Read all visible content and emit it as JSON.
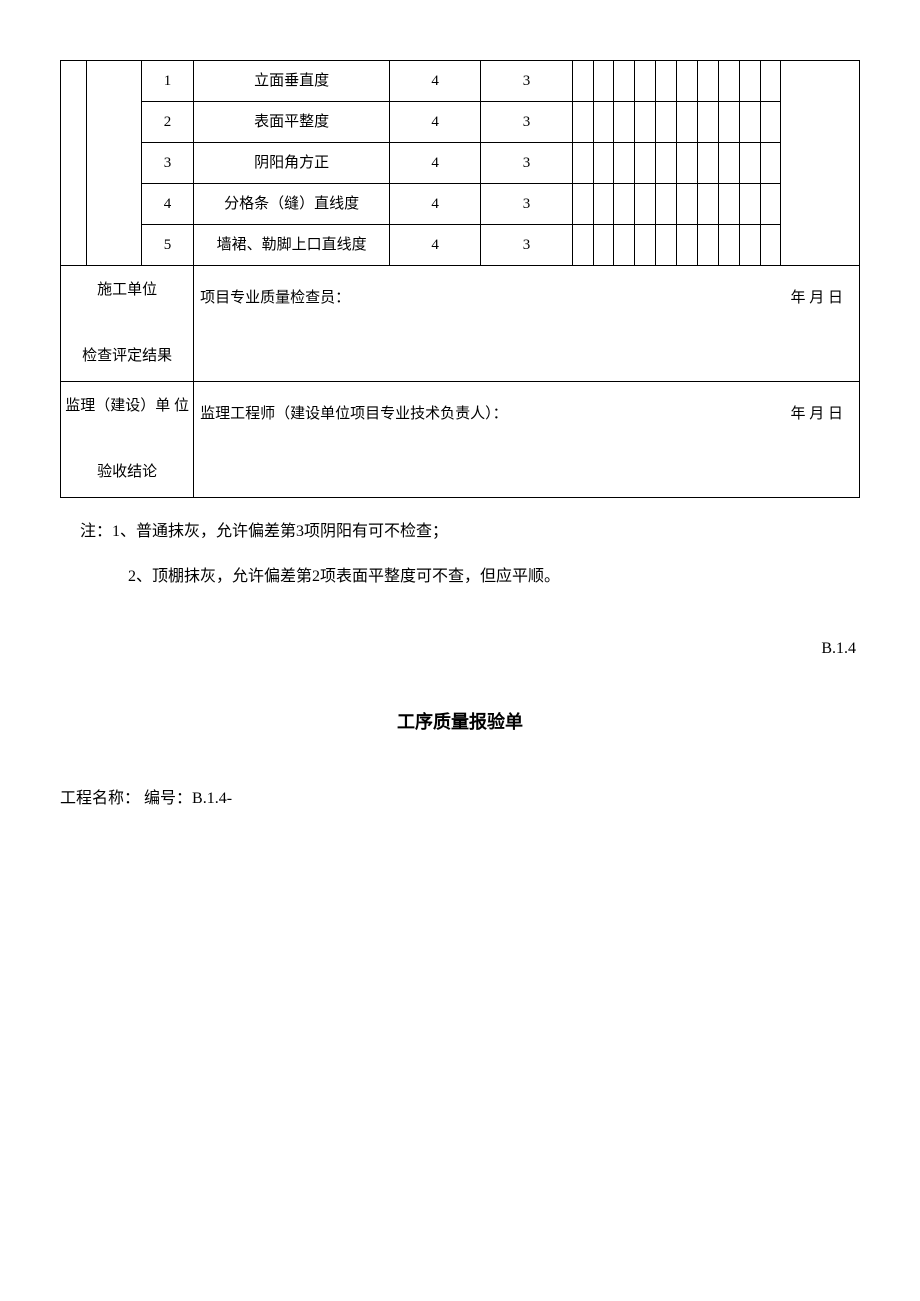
{
  "table": {
    "rows": [
      {
        "num": "1",
        "item": "立面垂直度",
        "v1": "4",
        "v2": "3"
      },
      {
        "num": "2",
        "item": "表面平整度",
        "v1": "4",
        "v2": "3"
      },
      {
        "num": "3",
        "item": "阴阳角方正",
        "v1": "4",
        "v2": "3"
      },
      {
        "num": "4",
        "item": "分格条（缝）直线度",
        "v1": "4",
        "v2": "3"
      },
      {
        "num": "5",
        "item": "墙裙、勒脚上口直线度",
        "v1": "4",
        "v2": "3"
      }
    ],
    "sig1": {
      "label_line1": "施工单位",
      "label_line2": "检查评定结果",
      "text": "项目专业质量检查员：",
      "date": "年 月 日"
    },
    "sig2": {
      "label_line1": "监理（建设）单 位",
      "label_line2": "验收结论",
      "text": "监理工程师（建设单位项目专业技术负责人）：",
      "date": "年 月 日"
    }
  },
  "notes": {
    "n1": "注：1、普通抹灰，允许偏差第3项阴阳有可不检查；",
    "n2": "2、顶棚抹灰，允许偏差第2项表面平整度可不查，但应平顺。"
  },
  "code": "B.1.4",
  "title2": "工序质量报验单",
  "meta": {
    "project_label": "工程名称：",
    "number_label": "编号：B.1.4-"
  },
  "style": {
    "page_bg": "#ffffff",
    "border_color": "#000000",
    "text_color": "#000000",
    "body_fontsize": 16,
    "table_fontsize": 15,
    "title_fontsize": 18
  }
}
